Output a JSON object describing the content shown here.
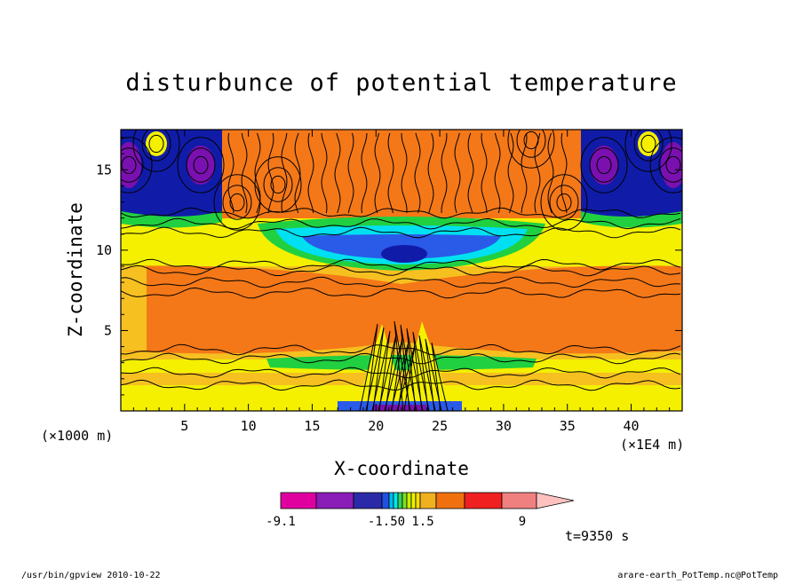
{
  "chart_data": {
    "type": "heatmap",
    "title": "disturbunce of potential temperature",
    "xlabel": "X-coordinate",
    "ylabel": "Z-coordinate",
    "x_unit": "(×1000 m)",
    "x_exponent": "(×1E4 m)",
    "xlim": [
      0,
      44
    ],
    "ylim": [
      0,
      17.5
    ],
    "xticks": [
      5,
      10,
      15,
      20,
      25,
      30,
      35,
      40
    ],
    "yticks": [
      5,
      10,
      15
    ],
    "xtick_labels": [
      "5",
      "10",
      "15",
      "20",
      "25",
      "30",
      "35",
      "40"
    ],
    "ytick_labels": [
      "5",
      "10",
      "15"
    ],
    "time_label": "t=9350 s",
    "colorbar": {
      "labels": [
        "-9.1",
        "-1.50",
        "1.5",
        "9"
      ],
      "colors": [
        "#e000a0",
        "#8a1cb8",
        "#2a2aa8",
        "#2050e0",
        "#00b8f0",
        "#00e8e8",
        "#30d060",
        "#80e020",
        "#c8f000",
        "#f0f000",
        "#f8e000",
        "#f0b020",
        "#f07010",
        "#f02020",
        "#f08080",
        "#ffc0c0"
      ],
      "extend": "right"
    },
    "colors": {
      "very_neg": "#7a10b0",
      "neg": "#101ca8",
      "mid_neg": "#2a5ae8",
      "cyan": "#00e0f0",
      "green": "#20d040",
      "light_green": "#80e020",
      "yellow": "#f4f000",
      "light_orange": "#f6c020",
      "orange": "#f47818",
      "red": "#f02828"
    }
  },
  "footer": {
    "left": "/usr/bin/gpview  2010-10-22",
    "right": "arare-earth_PotTemp.nc@PotTemp"
  }
}
